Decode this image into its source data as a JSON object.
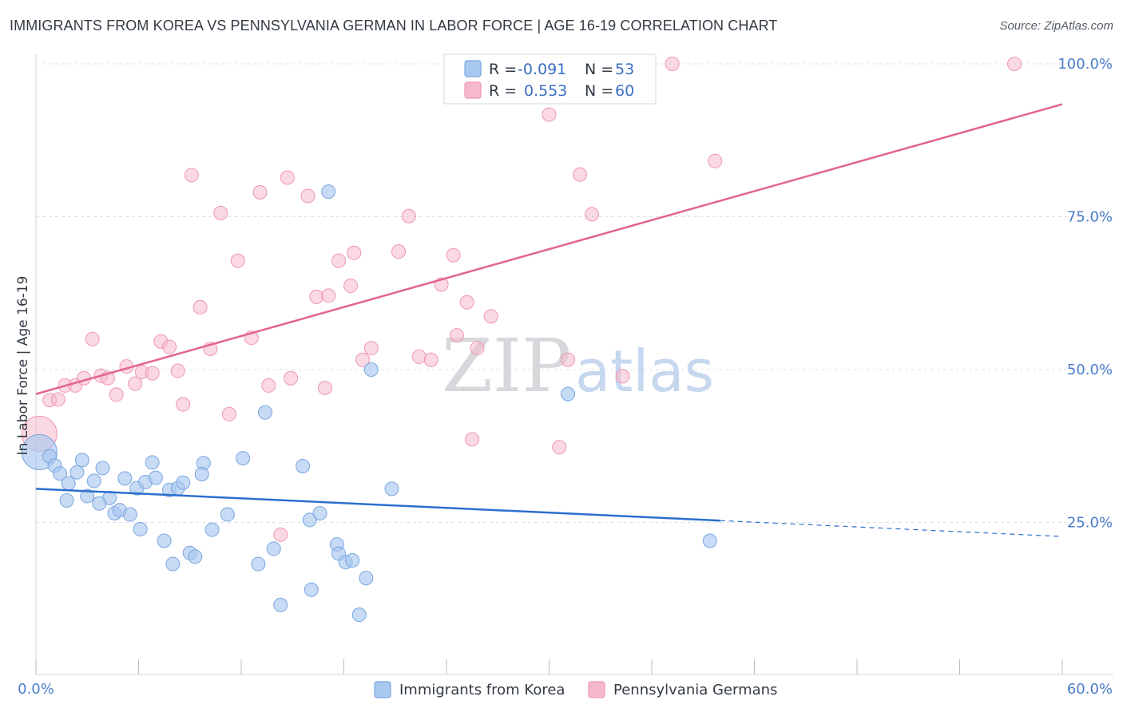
{
  "header": {
    "title": "IMMIGRANTS FROM KOREA VS PENNSYLVANIA GERMAN IN LABOR FORCE | AGE 16-19 CORRELATION CHART",
    "source": "Source: ZipAtlas.com"
  },
  "watermark": {
    "zip": "ZIP",
    "atlas": "atlas"
  },
  "stats": {
    "r_label": "R =",
    "n_label": "N =",
    "rows": [
      {
        "series": "Immigrants from Korea",
        "r": "-0.091",
        "n": "53",
        "color": "#a9c8f0"
      },
      {
        "series": "Pennsylvania Germans",
        "r": "0.553",
        "n": "60",
        "color": "#f6b9cc"
      }
    ]
  },
  "chart_data": {
    "type": "scatter",
    "title": "IMMIGRANTS FROM KOREA VS PENNSYLVANIA GERMAN IN LABOR FORCE | AGE 16-19 CORRELATION CHART",
    "xlabel": "",
    "ylabel": "In Labor Force | Age 16-19",
    "xlim": [
      0,
      60
    ],
    "ylim": [
      0,
      100
    ],
    "x_tick_labels": [
      {
        "value": 0,
        "label": "0.0%"
      },
      {
        "value": 60,
        "label": "60.0%"
      }
    ],
    "y_tick_labels": [
      {
        "value": 25,
        "label": "25.0%"
      },
      {
        "value": 50,
        "label": "50.0%"
      },
      {
        "value": 75,
        "label": "75.0%"
      },
      {
        "value": 100,
        "label": "100.0%"
      }
    ],
    "grid": "horizontal dashed",
    "legend_position": "bottom-center",
    "series": [
      {
        "name": "Immigrants from Korea",
        "color": "#a9c8f0",
        "edge_color": "#7aa6e0",
        "trend_color": "#2b6fd0",
        "trend": {
          "x0": 0,
          "y0": 30.5,
          "x1": 40,
          "y1": 25.3,
          "x_dash_end": 60,
          "y_dash_end": 22.7
        },
        "points": [
          {
            "x": 0.2,
            "y": 36.5,
            "big": true
          },
          {
            "x": 0.8,
            "y": 35.8
          },
          {
            "x": 1.1,
            "y": 34.3
          },
          {
            "x": 1.4,
            "y": 33.0
          },
          {
            "x": 1.9,
            "y": 31.4
          },
          {
            "x": 2.4,
            "y": 33.2
          },
          {
            "x": 2.7,
            "y": 35.2
          },
          {
            "x": 1.8,
            "y": 28.6
          },
          {
            "x": 3.4,
            "y": 31.8
          },
          {
            "x": 3.9,
            "y": 33.9
          },
          {
            "x": 3.0,
            "y": 29.3
          },
          {
            "x": 4.3,
            "y": 29.0
          },
          {
            "x": 3.7,
            "y": 28.1
          },
          {
            "x": 4.6,
            "y": 26.5
          },
          {
            "x": 4.9,
            "y": 27.0
          },
          {
            "x": 5.5,
            "y": 26.3
          },
          {
            "x": 5.2,
            "y": 32.2
          },
          {
            "x": 5.9,
            "y": 30.6
          },
          {
            "x": 6.4,
            "y": 31.6
          },
          {
            "x": 6.8,
            "y": 34.8
          },
          {
            "x": 7.0,
            "y": 32.3
          },
          {
            "x": 6.1,
            "y": 23.9
          },
          {
            "x": 7.5,
            "y": 22.0
          },
          {
            "x": 7.8,
            "y": 30.3
          },
          {
            "x": 8.3,
            "y": 30.6
          },
          {
            "x": 8.6,
            "y": 31.5
          },
          {
            "x": 9.0,
            "y": 20.0
          },
          {
            "x": 9.3,
            "y": 19.4
          },
          {
            "x": 9.8,
            "y": 34.7
          },
          {
            "x": 9.7,
            "y": 32.9
          },
          {
            "x": 10.3,
            "y": 23.8
          },
          {
            "x": 11.2,
            "y": 26.3
          },
          {
            "x": 12.1,
            "y": 35.5
          },
          {
            "x": 13.0,
            "y": 18.2
          },
          {
            "x": 13.4,
            "y": 43.0
          },
          {
            "x": 13.9,
            "y": 20.7
          },
          {
            "x": 14.3,
            "y": 11.5
          },
          {
            "x": 15.6,
            "y": 34.2
          },
          {
            "x": 16.0,
            "y": 25.4
          },
          {
            "x": 16.1,
            "y": 14.0
          },
          {
            "x": 16.6,
            "y": 26.5
          },
          {
            "x": 17.6,
            "y": 21.4
          },
          {
            "x": 17.7,
            "y": 19.9
          },
          {
            "x": 18.1,
            "y": 18.5
          },
          {
            "x": 18.5,
            "y": 18.8
          },
          {
            "x": 18.9,
            "y": 9.9
          },
          {
            "x": 19.3,
            "y": 15.9
          },
          {
            "x": 19.6,
            "y": 50.0
          },
          {
            "x": 20.8,
            "y": 30.5
          },
          {
            "x": 17.1,
            "y": 79.1
          },
          {
            "x": 31.1,
            "y": 46.0
          },
          {
            "x": 39.4,
            "y": 22.0
          },
          {
            "x": 8.0,
            "y": 18.2
          }
        ]
      },
      {
        "name": "Pennsylvania Germans",
        "color": "#f6b9cc",
        "edge_color": "#ef97b2",
        "trend_color": "#e2658e",
        "trend": {
          "x0": 0,
          "y0": 46.0,
          "x1": 60,
          "y1": 93.4
        },
        "points": [
          {
            "x": 0.2,
            "y": 39.5,
            "big": true
          },
          {
            "x": 0.8,
            "y": 45.0
          },
          {
            "x": 1.3,
            "y": 45.1
          },
          {
            "x": 1.7,
            "y": 47.4
          },
          {
            "x": 2.3,
            "y": 47.4
          },
          {
            "x": 2.8,
            "y": 48.6
          },
          {
            "x": 3.3,
            "y": 55.0
          },
          {
            "x": 3.8,
            "y": 49.0
          },
          {
            "x": 4.2,
            "y": 48.6
          },
          {
            "x": 4.7,
            "y": 45.9
          },
          {
            "x": 5.3,
            "y": 50.5
          },
          {
            "x": 5.8,
            "y": 47.7
          },
          {
            "x": 6.2,
            "y": 49.6
          },
          {
            "x": 6.8,
            "y": 49.4
          },
          {
            "x": 7.3,
            "y": 54.6
          },
          {
            "x": 7.8,
            "y": 53.7
          },
          {
            "x": 8.3,
            "y": 49.8
          },
          {
            "x": 8.6,
            "y": 44.3
          },
          {
            "x": 9.1,
            "y": 81.8
          },
          {
            "x": 9.6,
            "y": 60.2
          },
          {
            "x": 10.2,
            "y": 53.4
          },
          {
            "x": 10.8,
            "y": 75.6
          },
          {
            "x": 11.3,
            "y": 42.7
          },
          {
            "x": 11.8,
            "y": 67.8
          },
          {
            "x": 12.6,
            "y": 55.2
          },
          {
            "x": 13.1,
            "y": 79.0
          },
          {
            "x": 13.6,
            "y": 47.4
          },
          {
            "x": 14.3,
            "y": 23.0
          },
          {
            "x": 14.7,
            "y": 81.4
          },
          {
            "x": 14.9,
            "y": 48.6
          },
          {
            "x": 15.9,
            "y": 78.4
          },
          {
            "x": 16.4,
            "y": 61.9
          },
          {
            "x": 16.9,
            "y": 47.0
          },
          {
            "x": 17.1,
            "y": 62.1
          },
          {
            "x": 17.7,
            "y": 67.8
          },
          {
            "x": 18.4,
            "y": 63.7
          },
          {
            "x": 18.6,
            "y": 69.1
          },
          {
            "x": 19.1,
            "y": 51.6
          },
          {
            "x": 19.6,
            "y": 53.5
          },
          {
            "x": 21.2,
            "y": 69.3
          },
          {
            "x": 21.8,
            "y": 75.1
          },
          {
            "x": 22.4,
            "y": 52.1
          },
          {
            "x": 23.1,
            "y": 51.6
          },
          {
            "x": 23.7,
            "y": 63.9
          },
          {
            "x": 24.4,
            "y": 68.7
          },
          {
            "x": 24.6,
            "y": 55.6
          },
          {
            "x": 25.2,
            "y": 61.0
          },
          {
            "x": 25.5,
            "y": 38.6
          },
          {
            "x": 25.8,
            "y": 53.5
          },
          {
            "x": 26.6,
            "y": 58.7
          },
          {
            "x": 28.2,
            "y": 100.0
          },
          {
            "x": 30.0,
            "y": 91.7
          },
          {
            "x": 30.6,
            "y": 37.3
          },
          {
            "x": 31.1,
            "y": 51.6
          },
          {
            "x": 31.8,
            "y": 81.9
          },
          {
            "x": 32.5,
            "y": 75.4
          },
          {
            "x": 34.3,
            "y": 48.9
          },
          {
            "x": 37.2,
            "y": 100.0
          },
          {
            "x": 39.7,
            "y": 84.1
          },
          {
            "x": 57.2,
            "y": 100.0
          }
        ]
      }
    ]
  }
}
